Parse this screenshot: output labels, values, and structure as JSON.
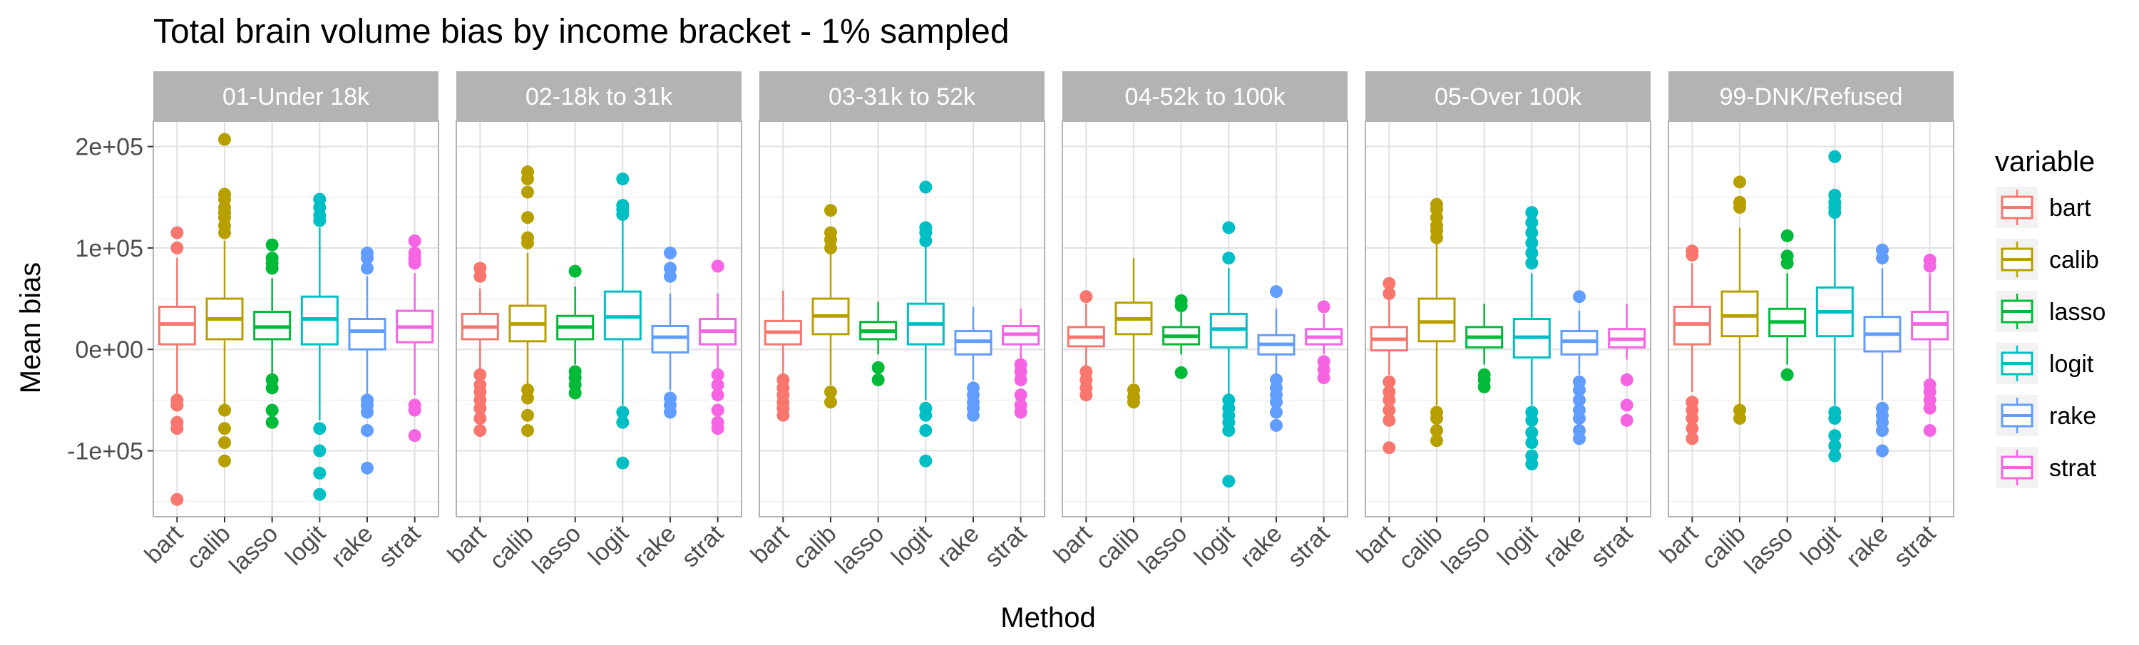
{
  "chart_data": {
    "type": "boxplot",
    "title": "Total brain volume bias by income bracket - 1% sampled",
    "xlabel": "Method",
    "ylabel": "Mean bias",
    "ylim": [
      -165000,
      225000
    ],
    "y_ticks": [
      {
        "value": -100000,
        "label": "-1e+05"
      },
      {
        "value": 0,
        "label": "0e+00"
      },
      {
        "value": 100000,
        "label": "1e+05"
      },
      {
        "value": 200000,
        "label": "2e+05"
      }
    ],
    "grid": true,
    "legend": {
      "title": "variable",
      "position": "right",
      "entries": [
        "bart",
        "calib",
        "lasso",
        "logit",
        "rake",
        "strat"
      ]
    },
    "methods": [
      "bart",
      "calib",
      "lasso",
      "logit",
      "rake",
      "strat"
    ],
    "colors": {
      "bart": "#F8766D",
      "calib": "#B79F00",
      "lasso": "#00BA38",
      "logit": "#00BFC4",
      "rake": "#619CFF",
      "strat": "#F564E3"
    },
    "panels": [
      {
        "label": "01-Under 18k",
        "boxes": [
          {
            "method": "bart",
            "min": -45000,
            "q1": 5000,
            "median": 25000,
            "q3": 42000,
            "max": 90000,
            "outliers": [
              115000,
              100000,
              -50000,
              -55000,
              -72000,
              -78000,
              -148000
            ]
          },
          {
            "method": "calib",
            "min": -55000,
            "q1": 10000,
            "median": 30000,
            "q3": 50000,
            "max": 107000,
            "outliers": [
              207000,
              153000,
              148000,
              140000,
              135000,
              130000,
              122000,
              115000,
              -60000,
              -78000,
              -92000,
              -110000
            ]
          },
          {
            "method": "lasso",
            "min": -25000,
            "q1": 10000,
            "median": 22000,
            "q3": 37000,
            "max": 70000,
            "outliers": [
              103000,
              90000,
              85000,
              80000,
              -30000,
              -38000,
              -60000,
              -72000
            ]
          },
          {
            "method": "logit",
            "min": -70000,
            "q1": 5000,
            "median": 30000,
            "q3": 52000,
            "max": 120000,
            "outliers": [
              148000,
              140000,
              132000,
              127000,
              -78000,
              -100000,
              -122000,
              -143000
            ]
          },
          {
            "method": "rake",
            "min": -45000,
            "q1": 0,
            "median": 18000,
            "q3": 30000,
            "max": 72000,
            "outliers": [
              95000,
              90000,
              80000,
              -50000,
              -55000,
              -62000,
              -80000,
              -117000
            ]
          },
          {
            "method": "strat",
            "min": -45000,
            "q1": 7000,
            "median": 22000,
            "q3": 38000,
            "max": 75000,
            "outliers": [
              107000,
              95000,
              90000,
              85000,
              -55000,
              -60000,
              -85000
            ]
          }
        ]
      },
      {
        "label": "02-18k to 31k",
        "boxes": [
          {
            "method": "bart",
            "min": -22000,
            "q1": 10000,
            "median": 22000,
            "q3": 35000,
            "max": 60000,
            "outliers": [
              80000,
              72000,
              -25000,
              -35000,
              -42000,
              -50000,
              -58000,
              -68000,
              -80000
            ]
          },
          {
            "method": "calib",
            "min": -35000,
            "q1": 8000,
            "median": 25000,
            "q3": 43000,
            "max": 95000,
            "outliers": [
              175000,
              168000,
              155000,
              130000,
              110000,
              105000,
              -40000,
              -48000,
              -65000,
              -80000
            ]
          },
          {
            "method": "lasso",
            "min": -15000,
            "q1": 10000,
            "median": 22000,
            "q3": 33000,
            "max": 62000,
            "outliers": [
              77000,
              -22000,
              -28000,
              -35000,
              -43000
            ]
          },
          {
            "method": "logit",
            "min": -55000,
            "q1": 10000,
            "median": 32000,
            "q3": 57000,
            "max": 130000,
            "outliers": [
              168000,
              142000,
              138000,
              133000,
              -62000,
              -72000,
              -112000
            ]
          },
          {
            "method": "rake",
            "min": -40000,
            "q1": -3000,
            "median": 12000,
            "q3": 23000,
            "max": 55000,
            "outliers": [
              95000,
              80000,
              72000,
              -48000,
              -55000,
              -62000
            ]
          },
          {
            "method": "strat",
            "min": -20000,
            "q1": 5000,
            "median": 18000,
            "q3": 30000,
            "max": 55000,
            "outliers": [
              82000,
              -25000,
              -35000,
              -45000,
              -60000,
              -72000,
              -78000
            ]
          }
        ]
      },
      {
        "label": "03-31k to 52k",
        "boxes": [
          {
            "method": "bart",
            "min": -25000,
            "q1": 5000,
            "median": 17000,
            "q3": 28000,
            "max": 58000,
            "outliers": [
              -30000,
              -38000,
              -45000,
              -52000,
              -58000,
              -65000
            ]
          },
          {
            "method": "calib",
            "min": -35000,
            "q1": 15000,
            "median": 33000,
            "q3": 50000,
            "max": 95000,
            "outliers": [
              137000,
              115000,
              108000,
              100000,
              -42000,
              -52000
            ]
          },
          {
            "method": "lasso",
            "min": -5000,
            "q1": 10000,
            "median": 18000,
            "q3": 27000,
            "max": 47000,
            "outliers": [
              -18000,
              -30000
            ]
          },
          {
            "method": "logit",
            "min": -50000,
            "q1": 5000,
            "median": 25000,
            "q3": 45000,
            "max": 105000,
            "outliers": [
              160000,
              120000,
              115000,
              107000,
              -58000,
              -65000,
              -80000,
              -110000
            ]
          },
          {
            "method": "rake",
            "min": -30000,
            "q1": -5000,
            "median": 8000,
            "q3": 18000,
            "max": 42000,
            "outliers": [
              -38000,
              -45000,
              -52000,
              -58000,
              -65000
            ]
          },
          {
            "method": "strat",
            "min": -10000,
            "q1": 5000,
            "median": 15000,
            "q3": 23000,
            "max": 40000,
            "outliers": [
              -15000,
              -22000,
              -30000,
              -45000,
              -55000,
              -62000
            ]
          }
        ]
      },
      {
        "label": "04-52k to 100k",
        "boxes": [
          {
            "method": "bart",
            "min": -18000,
            "q1": 3000,
            "median": 12000,
            "q3": 22000,
            "max": 45000,
            "outliers": [
              52000,
              -22000,
              -30000,
              -38000,
              -45000
            ]
          },
          {
            "method": "calib",
            "min": -33000,
            "q1": 15000,
            "median": 30000,
            "q3": 46000,
            "max": 90000,
            "outliers": [
              -40000,
              -47000,
              -52000
            ]
          },
          {
            "method": "lasso",
            "min": -5000,
            "q1": 5000,
            "median": 13000,
            "q3": 22000,
            "max": 37000,
            "outliers": [
              48000,
              43000,
              -23000
            ]
          },
          {
            "method": "logit",
            "min": -45000,
            "q1": 2000,
            "median": 20000,
            "q3": 35000,
            "max": 80000,
            "outliers": [
              120000,
              90000,
              -50000,
              -58000,
              -65000,
              -72000,
              -80000,
              -130000
            ]
          },
          {
            "method": "rake",
            "min": -25000,
            "q1": -5000,
            "median": 5000,
            "q3": 14000,
            "max": 40000,
            "outliers": [
              57000,
              -30000,
              -38000,
              -45000,
              -52000,
              -62000,
              -75000
            ]
          },
          {
            "method": "strat",
            "min": -5000,
            "q1": 5000,
            "median": 12000,
            "q3": 20000,
            "max": 35000,
            "outliers": [
              42000,
              -12000,
              -20000,
              -28000
            ]
          }
        ]
      },
      {
        "label": "05-Over 100k",
        "boxes": [
          {
            "method": "bart",
            "min": -25000,
            "q1": -1000,
            "median": 10000,
            "q3": 22000,
            "max": 50000,
            "outliers": [
              65000,
              55000,
              -32000,
              -42000,
              -50000,
              -60000,
              -70000,
              -97000
            ]
          },
          {
            "method": "calib",
            "min": -55000,
            "q1": 8000,
            "median": 27000,
            "q3": 50000,
            "max": 105000,
            "outliers": [
              143000,
              138000,
              130000,
              122000,
              117000,
              110000,
              -62000,
              -68000,
              -80000,
              -90000
            ]
          },
          {
            "method": "lasso",
            "min": -15000,
            "q1": 2000,
            "median": 12000,
            "q3": 22000,
            "max": 45000,
            "outliers": [
              -25000,
              -30000,
              -37000
            ]
          },
          {
            "method": "logit",
            "min": -55000,
            "q1": -8000,
            "median": 12000,
            "q3": 30000,
            "max": 75000,
            "outliers": [
              135000,
              125000,
              115000,
              105000,
              95000,
              85000,
              -62000,
              -70000,
              -82000,
              -92000,
              -105000,
              -113000
            ]
          },
          {
            "method": "rake",
            "min": -25000,
            "q1": -5000,
            "median": 8000,
            "q3": 18000,
            "max": 38000,
            "outliers": [
              52000,
              -32000,
              -40000,
              -50000,
              -60000,
              -68000,
              -80000,
              -88000
            ]
          },
          {
            "method": "strat",
            "min": -10000,
            "q1": 2000,
            "median": 10000,
            "q3": 20000,
            "max": 45000,
            "outliers": [
              -30000,
              -55000,
              -70000
            ]
          }
        ]
      },
      {
        "label": "99-DNK/Refused",
        "boxes": [
          {
            "method": "bart",
            "min": -42000,
            "q1": 5000,
            "median": 25000,
            "q3": 42000,
            "max": 85000,
            "outliers": [
              97000,
              93000,
              -52000,
              -60000,
              -68000,
              -78000,
              -88000
            ]
          },
          {
            "method": "calib",
            "min": -55000,
            "q1": 13000,
            "median": 33000,
            "q3": 57000,
            "max": 120000,
            "outliers": [
              165000,
              145000,
              140000,
              -60000,
              -68000
            ]
          },
          {
            "method": "lasso",
            "min": -15000,
            "q1": 13000,
            "median": 27000,
            "q3": 40000,
            "max": 75000,
            "outliers": [
              112000,
              92000,
              85000,
              -25000
            ]
          },
          {
            "method": "logit",
            "min": -55000,
            "q1": 13000,
            "median": 37000,
            "q3": 61000,
            "max": 130000,
            "outliers": [
              190000,
              152000,
              145000,
              140000,
              135000,
              -62000,
              -68000,
              -85000,
              -95000,
              -105000
            ]
          },
          {
            "method": "rake",
            "min": -50000,
            "q1": -2000,
            "median": 15000,
            "q3": 32000,
            "max": 80000,
            "outliers": [
              98000,
              90000,
              -58000,
              -65000,
              -72000,
              -80000,
              -100000
            ]
          },
          {
            "method": "strat",
            "min": -30000,
            "q1": 10000,
            "median": 25000,
            "q3": 37000,
            "max": 75000,
            "outliers": [
              88000,
              82000,
              -35000,
              -42000,
              -50000,
              -58000,
              -80000
            ]
          }
        ]
      }
    ]
  }
}
